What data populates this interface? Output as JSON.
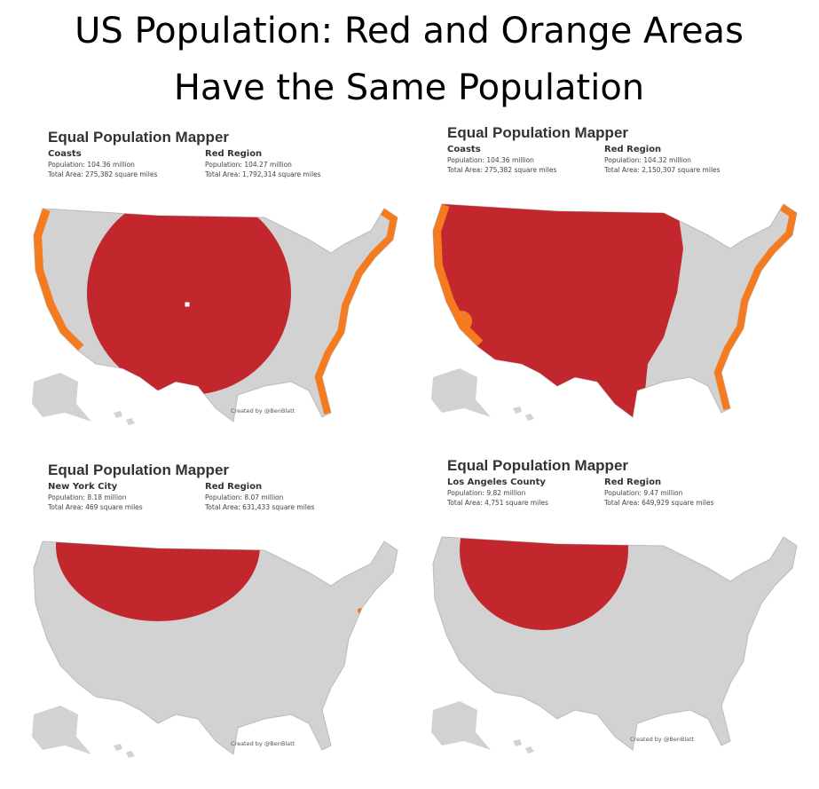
{
  "title_lines": [
    "US Population: Red and Orange Areas",
    "Have the Same Population"
  ],
  "panels": [
    {
      "heading": "Equal Population Mapper",
      "left": {
        "name": "Coasts",
        "population": "Population: 104.36 million",
        "area": "Total Area: 275,382 square miles"
      },
      "right": {
        "name": "Red Region",
        "population": "Population: 104.27 million",
        "area": "Total Area: 1,792,314 square miles"
      },
      "credit": "Created by @BenBlatt"
    },
    {
      "heading": "Equal Population Mapper",
      "left": {
        "name": "Coasts",
        "population": "Population: 104.36 million",
        "area": "Total Area: 275,382 square miles"
      },
      "right": {
        "name": "Red Region",
        "population": "Population: 104.32 million",
        "area": "Total Area: 2,150,307 square miles"
      }
    },
    {
      "heading": "Equal Population Mapper",
      "left": {
        "name": "New York City",
        "population": "Population: 8.18 million",
        "area": "Total Area: 469 square miles"
      },
      "right": {
        "name": "Red Region",
        "population": "Population: 8.07 million",
        "area": "Total Area: 631,433 square miles"
      },
      "credit": "Created by @BenBlatt"
    },
    {
      "heading": "Equal Population Mapper",
      "left": {
        "name": "Los Angeles County",
        "population": "Population: 9.82 million",
        "area": "Total Area: 4,751 square miles"
      },
      "right": {
        "name": "Red Region",
        "population": "Population: 9.47 million",
        "area": "Total Area: 649,929 square miles"
      },
      "credit": "Created by @BenBlatt"
    }
  ]
}
